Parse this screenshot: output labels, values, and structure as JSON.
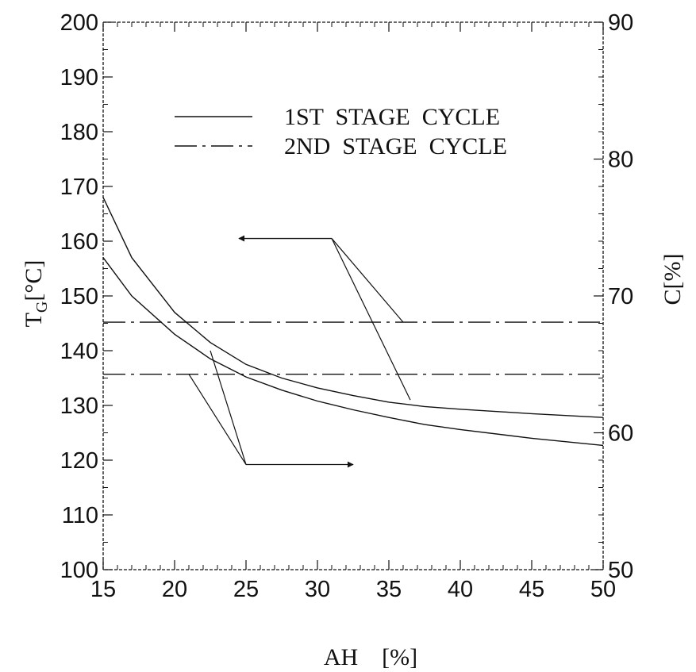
{
  "chart_data": {
    "type": "line",
    "title": "",
    "xlabel": "AH    [%]",
    "ylabel_left": "T_G[°C]",
    "ylabel_left_base": "T",
    "ylabel_left_sub": "G",
    "ylabel_left_unit": "[°C]",
    "ylabel_right": "C[%]",
    "xlim": [
      15,
      50
    ],
    "ylim_left": [
      100,
      200
    ],
    "ylim_right": [
      50,
      90
    ],
    "x_ticks": [
      "15",
      "20",
      "25",
      "30",
      "35",
      "40",
      "45",
      "50"
    ],
    "y_ticks_left": [
      "100",
      "110",
      "120",
      "130",
      "140",
      "150",
      "160",
      "170",
      "180",
      "190",
      "200"
    ],
    "y_ticks_right": [
      "50",
      "60",
      "70",
      "80",
      "90"
    ],
    "grid": false,
    "legend_position": "top-center",
    "legend": [
      {
        "label": "1ST  STAGE  CYCLE",
        "style": "solid"
      },
      {
        "label": "2ND  STAGE  CYCLE",
        "style": "dash-dot"
      }
    ],
    "series": [
      {
        "label_ref": 0,
        "style": "solid",
        "axis": "left",
        "x": [
          15,
          17,
          20,
          22.5,
          25,
          27.5,
          30,
          32.5,
          35,
          37.5,
          40,
          45,
          50
        ],
        "y": [
          168,
          157,
          147,
          141.5,
          137.5,
          135,
          133.2,
          131.8,
          130.6,
          129.8,
          129.3,
          128.5,
          127.8
        ]
      },
      {
        "label_ref": 0,
        "style": "solid",
        "axis": "left",
        "x": [
          15,
          17,
          20,
          22.5,
          25,
          27.5,
          30,
          32.5,
          35,
          37.5,
          40,
          45,
          50
        ],
        "y": [
          157,
          150,
          143,
          138.5,
          135.2,
          132.8,
          130.8,
          129.2,
          127.8,
          126.5,
          125.6,
          124,
          122.7
        ]
      },
      {
        "label_ref": 1,
        "style": "dash-dot",
        "axis": "left",
        "x": [
          15,
          50
        ],
        "y": [
          145.2,
          145.2
        ]
      },
      {
        "label_ref": 1,
        "style": "dash-dot",
        "axis": "left",
        "x": [
          15,
          50
        ],
        "y": [
          135.7,
          135.7
        ]
      }
    ],
    "annotations": [
      {
        "note": "arrow pointing to left axis (T_G curves)",
        "from": [
          31,
          160.5
        ],
        "to": [
          24.5,
          160.5
        ],
        "leaders": [
          [
            31,
            160.5,
            36,
            145.2
          ],
          [
            31,
            160.5,
            36.5,
            131
          ]
        ]
      },
      {
        "note": "arrow pointing to right axis (C lines)",
        "from": [
          25,
          119.2
        ],
        "to": [
          32.5,
          119.2
        ],
        "leaders": [
          [
            25,
            119.2,
            21,
            135.7
          ],
          [
            25,
            119.2,
            22.5,
            140
          ]
        ]
      }
    ]
  }
}
